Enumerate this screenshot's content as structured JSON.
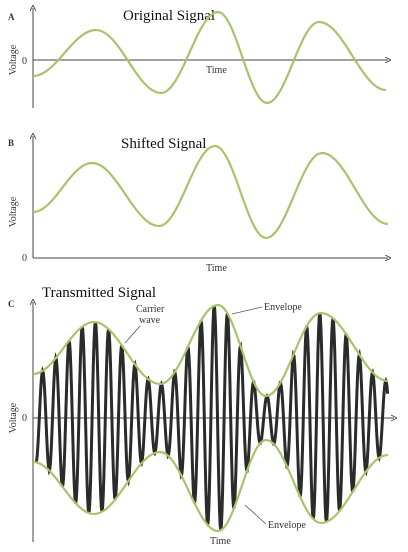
{
  "panels": {
    "a": {
      "letter": "A",
      "title": "Original Signal",
      "ylabel": "Voltage",
      "zero": "0",
      "xlabel": "Time"
    },
    "b": {
      "letter": "B",
      "title": "Shifted Signal",
      "ylabel": "Voltage",
      "zero": "0",
      "xlabel": "Time"
    },
    "c": {
      "letter": "C",
      "title": "Transmitted Signal",
      "ylabel": "Voltage",
      "zero": "0",
      "xlabel": "Time",
      "carrier_label_line1": "Carrier",
      "carrier_label_line2": "wave",
      "envelope_label_top": "Envelope",
      "envelope_label_bottom": "Envelope"
    }
  },
  "colors": {
    "signal": "#a8c46a",
    "carrier": "#2b2b2b"
  }
}
